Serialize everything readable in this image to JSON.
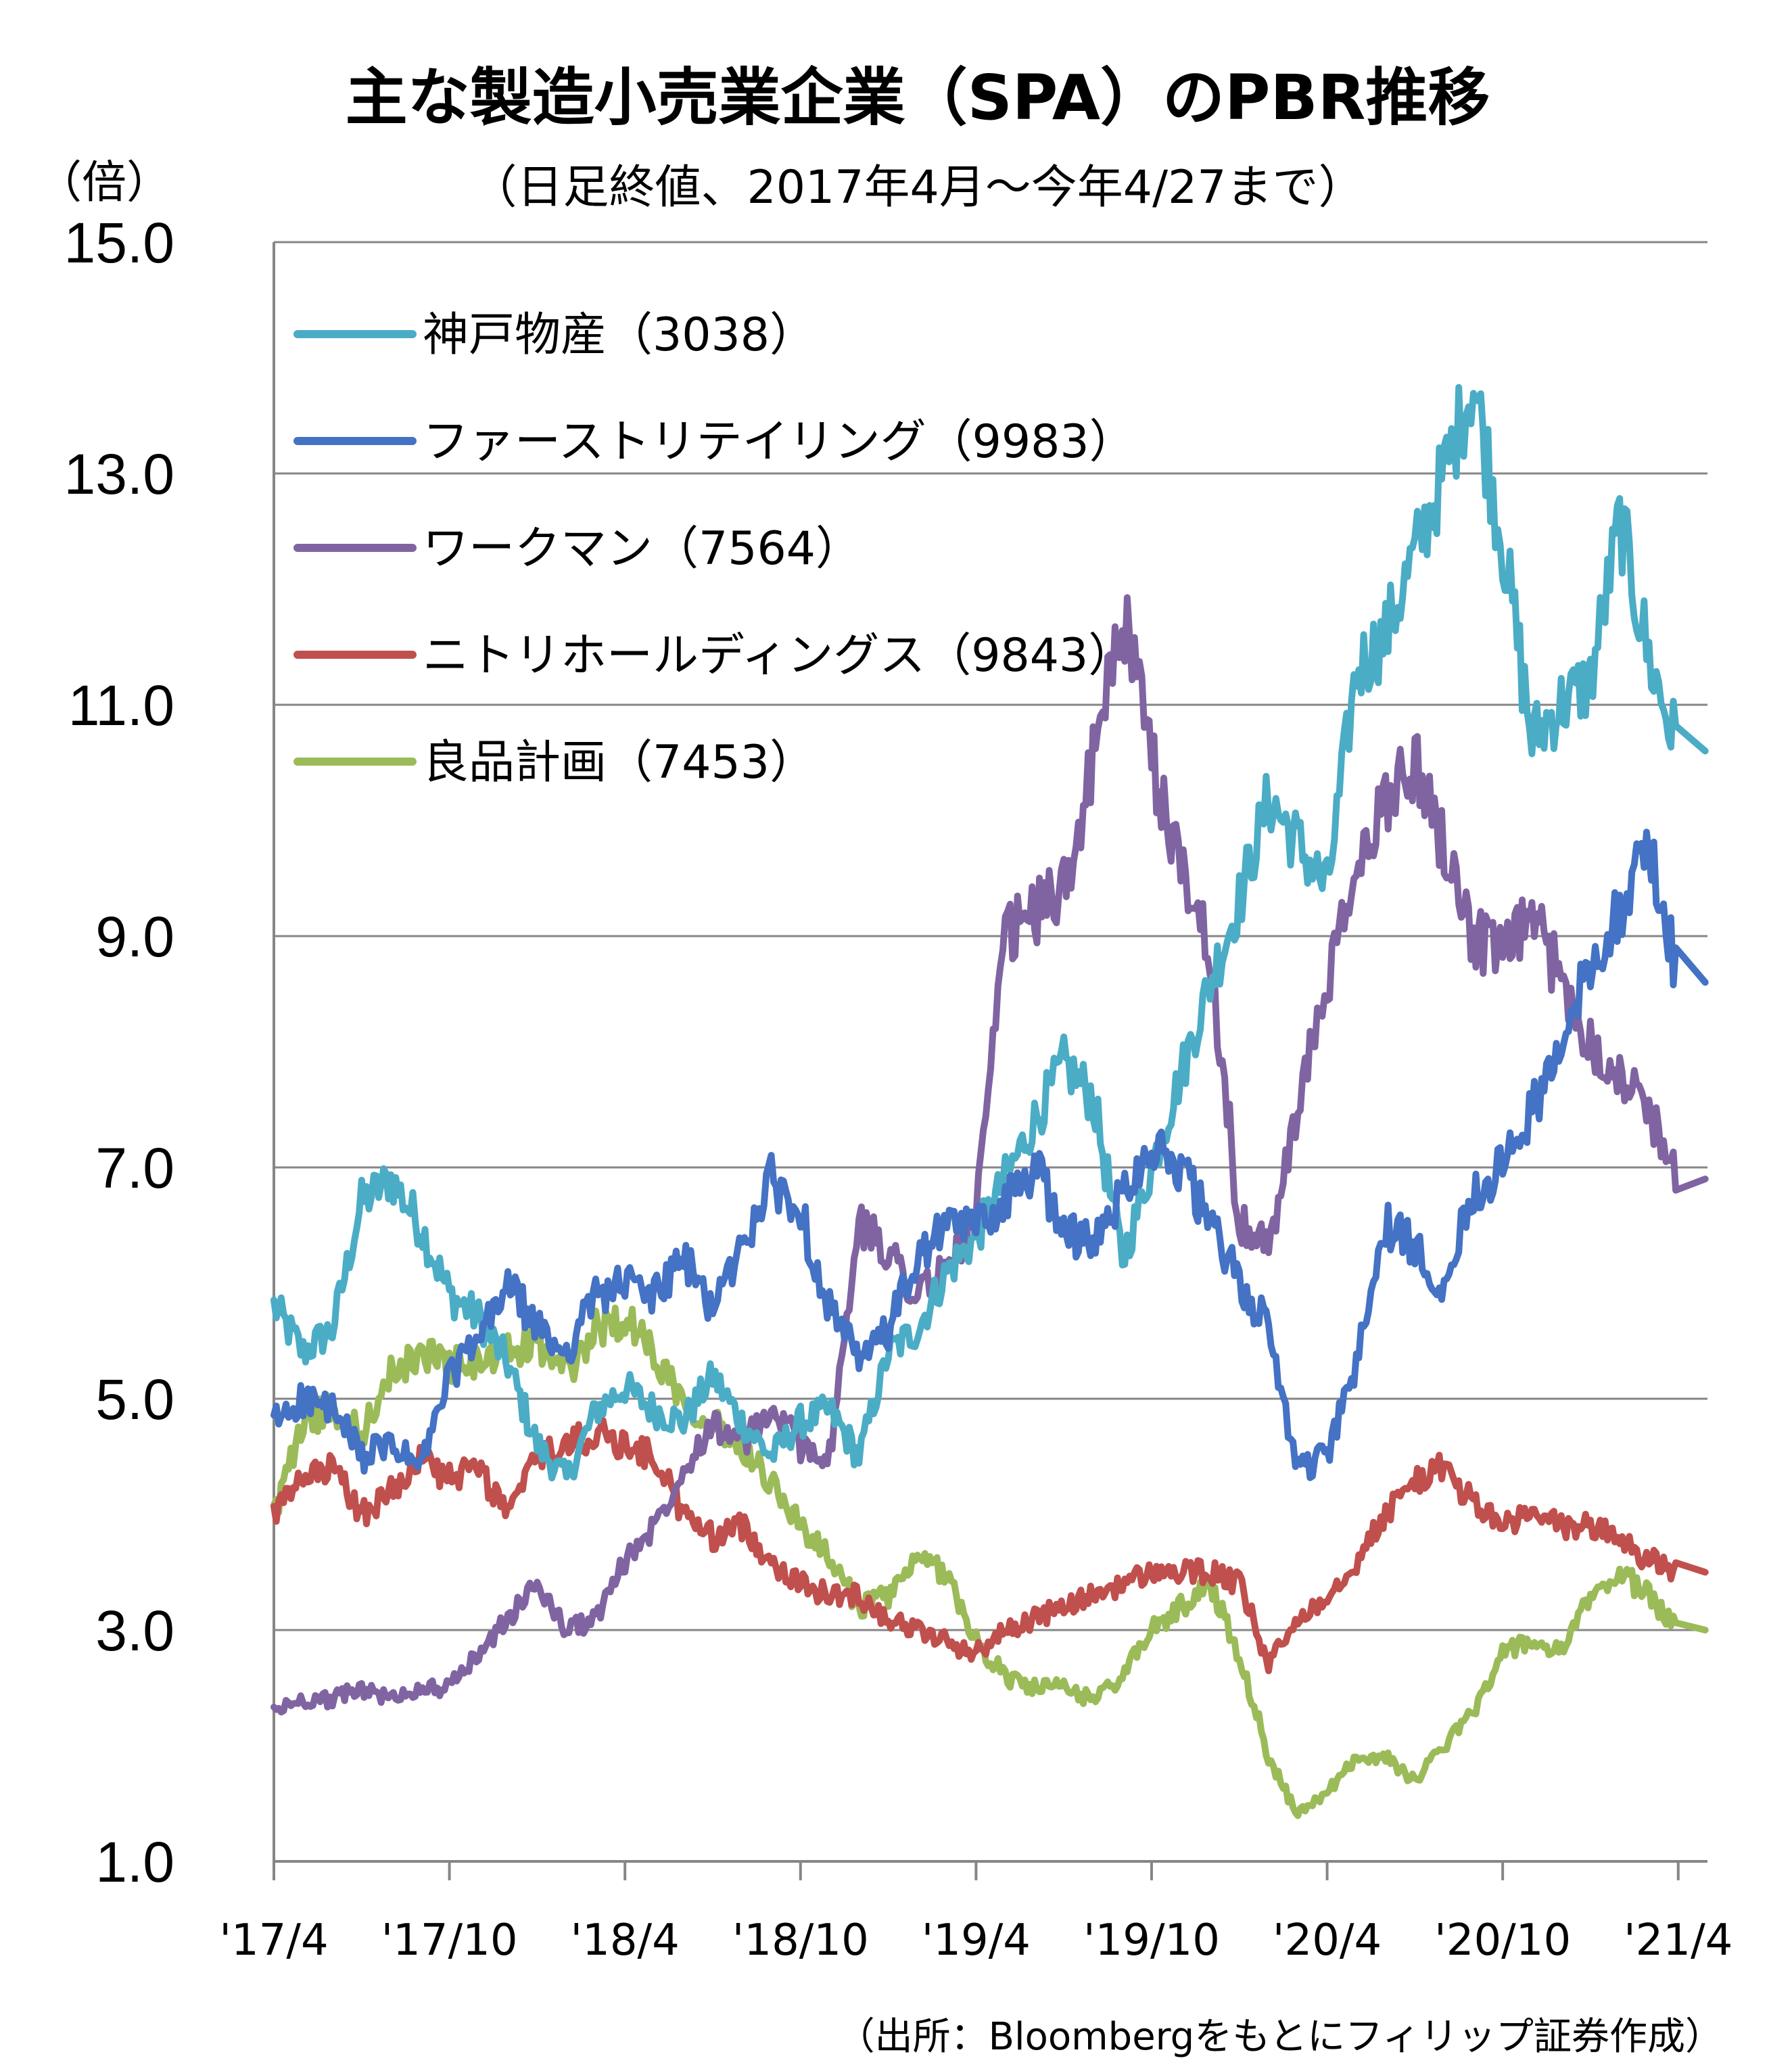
{
  "chart_data": {
    "type": "line",
    "title": "主な製造小売業企業（SPA）のPBR推移",
    "subtitle": "（日足終値、2017年4月～今年4/27まで）",
    "ylabel": "（倍）",
    "xlabel": "",
    "source": "（出所：Bloombergをもとにフィリップ証券作成）",
    "ylim": [
      1.0,
      15.0
    ],
    "yticks": [
      "15.0",
      "13.0",
      "11.0",
      "9.0",
      "7.0",
      "5.0",
      "3.0",
      "1.0"
    ],
    "x_range": [
      "2017-04",
      "2021-05"
    ],
    "xticks": [
      "'17/4",
      "'17/10",
      "'18/4",
      "'18/10",
      "'19/4",
      "'19/10",
      "'20/4",
      "'20/10",
      "'21/4"
    ],
    "grid": "horizontal",
    "legend_position": "top-left",
    "series": [
      {
        "name": "神戸物産（3038）",
        "color": "#4BACC6",
        "x": [
          "2017-04",
          "2017-05",
          "2017-06",
          "2017-07",
          "2017-08",
          "2017-09",
          "2017-10",
          "2017-11",
          "2017-12",
          "2018-01",
          "2018-02",
          "2018-03",
          "2018-04",
          "2018-05",
          "2018-06",
          "2018-07",
          "2018-08",
          "2018-09",
          "2018-10",
          "2018-11",
          "2018-12",
          "2019-01",
          "2019-02",
          "2019-03",
          "2019-04",
          "2019-05",
          "2019-06",
          "2019-07",
          "2019-08",
          "2019-09",
          "2019-10",
          "2019-11",
          "2019-12",
          "2020-01",
          "2020-02",
          "2020-03",
          "2020-04",
          "2020-05",
          "2020-06",
          "2020-07",
          "2020-08",
          "2020-09",
          "2020-10",
          "2020-11",
          "2020-12",
          "2021-01",
          "2021-02",
          "2021-03",
          "2021-04"
        ],
        "values": [
          5.8,
          5.4,
          5.6,
          6.7,
          6.9,
          6.5,
          5.9,
          5.7,
          5.3,
          4.6,
          4.3,
          4.9,
          5.1,
          4.9,
          4.8,
          5.2,
          4.8,
          4.5,
          4.8,
          4.9,
          4.5,
          5.4,
          5.6,
          6.1,
          6.4,
          6.9,
          7.4,
          7.9,
          7.6,
          6.2,
          7.0,
          7.8,
          8.6,
          9.3,
          10.2,
          9.8,
          9.4,
          11.3,
          11.6,
          12.3,
          13.0,
          13.8,
          12.4,
          10.7,
          11.0,
          11.2,
          12.6,
          11.4,
          10.6
        ]
      },
      {
        "name": "ファーストリテイリング（9983）",
        "color": "#4472C4",
        "x": [
          "2017-04",
          "2017-05",
          "2017-06",
          "2017-07",
          "2017-08",
          "2017-09",
          "2017-10",
          "2017-11",
          "2017-12",
          "2018-01",
          "2018-02",
          "2018-03",
          "2018-04",
          "2018-05",
          "2018-06",
          "2018-07",
          "2018-08",
          "2018-09",
          "2018-10",
          "2018-11",
          "2018-12",
          "2019-01",
          "2019-02",
          "2019-03",
          "2019-04",
          "2019-05",
          "2019-06",
          "2019-07",
          "2019-08",
          "2019-09",
          "2019-10",
          "2019-11",
          "2019-12",
          "2020-01",
          "2020-02",
          "2020-03",
          "2020-04",
          "2020-05",
          "2020-06",
          "2020-07",
          "2020-08",
          "2020-09",
          "2020-10",
          "2020-11",
          "2020-12",
          "2021-01",
          "2021-02",
          "2021-03",
          "2021-04"
        ],
        "values": [
          4.8,
          5.0,
          4.9,
          4.5,
          4.6,
          4.4,
          5.2,
          5.5,
          6.0,
          5.6,
          5.4,
          5.9,
          6.0,
          5.9,
          6.2,
          5.8,
          6.3,
          6.9,
          6.6,
          5.8,
          5.3,
          5.6,
          6.2,
          6.5,
          6.5,
          6.7,
          7.0,
          6.5,
          6.3,
          6.8,
          7.2,
          7.0,
          6.5,
          6.0,
          5.6,
          4.4,
          4.5,
          5.3,
          6.5,
          6.3,
          6.0,
          6.8,
          7.0,
          7.5,
          8.0,
          8.8,
          9.2,
          9.8,
          8.6
        ]
      },
      {
        "name": "ワークマン（7564）",
        "color": "#8064A2",
        "x": [
          "2017-04",
          "2017-05",
          "2017-06",
          "2017-07",
          "2017-08",
          "2017-09",
          "2017-10",
          "2017-11",
          "2017-12",
          "2018-01",
          "2018-02",
          "2018-03",
          "2018-04",
          "2018-05",
          "2018-06",
          "2018-07",
          "2018-08",
          "2018-09",
          "2018-10",
          "2018-11",
          "2018-12",
          "2019-01",
          "2019-02",
          "2019-03",
          "2019-04",
          "2019-05",
          "2019-06",
          "2019-07",
          "2019-08",
          "2019-09",
          "2019-10",
          "2019-11",
          "2019-12",
          "2020-01",
          "2020-02",
          "2020-03",
          "2020-04",
          "2020-05",
          "2020-06",
          "2020-07",
          "2020-08",
          "2020-09",
          "2020-10",
          "2020-11",
          "2020-12",
          "2021-01",
          "2021-02",
          "2021-03",
          "2021-04"
        ],
        "values": [
          2.3,
          2.4,
          2.4,
          2.5,
          2.4,
          2.5,
          2.5,
          2.8,
          3.1,
          3.4,
          3.0,
          3.1,
          3.6,
          3.9,
          4.4,
          4.8,
          4.6,
          4.9,
          4.6,
          4.5,
          6.5,
          6.3,
          5.9,
          6.1,
          6.6,
          9.0,
          9.2,
          9.4,
          10.5,
          11.8,
          10.5,
          9.6,
          8.9,
          6.5,
          6.3,
          7.5,
          8.6,
          9.5,
          10.2,
          10.5,
          9.8,
          9.0,
          8.8,
          9.2,
          8.6,
          8.1,
          7.8,
          7.5,
          6.9
        ]
      },
      {
        "name": "ニトリホールディングス（9843）",
        "color": "#C0504D",
        "x": [
          "2017-04",
          "2017-05",
          "2017-06",
          "2017-07",
          "2017-08",
          "2017-09",
          "2017-10",
          "2017-11",
          "2017-12",
          "2018-01",
          "2018-02",
          "2018-03",
          "2018-04",
          "2018-05",
          "2018-06",
          "2018-07",
          "2018-08",
          "2018-09",
          "2018-10",
          "2018-11",
          "2018-12",
          "2019-01",
          "2019-02",
          "2019-03",
          "2019-04",
          "2019-05",
          "2019-06",
          "2019-07",
          "2019-08",
          "2019-09",
          "2019-10",
          "2019-11",
          "2019-12",
          "2020-01",
          "2020-02",
          "2020-03",
          "2020-04",
          "2020-05",
          "2020-06",
          "2020-07",
          "2020-08",
          "2020-09",
          "2020-10",
          "2020-11",
          "2020-12",
          "2021-01",
          "2021-02",
          "2021-03",
          "2021-04"
        ],
        "values": [
          4.0,
          4.3,
          4.4,
          4.0,
          4.2,
          4.5,
          4.3,
          4.4,
          4.0,
          4.5,
          4.6,
          4.7,
          4.6,
          4.5,
          4.0,
          3.8,
          3.9,
          3.6,
          3.4,
          3.3,
          3.3,
          3.1,
          3.0,
          2.9,
          2.8,
          3.0,
          3.1,
          3.2,
          3.3,
          3.4,
          3.5,
          3.5,
          3.5,
          3.4,
          2.7,
          3.1,
          3.3,
          3.6,
          4.0,
          4.3,
          4.4,
          4.1,
          3.9,
          4.0,
          3.9,
          3.9,
          3.8,
          3.6,
          3.5
        ]
      },
      {
        "name": "良品計画（7453）",
        "color": "#9BBB59",
        "x": [
          "2017-04",
          "2017-05",
          "2017-06",
          "2017-07",
          "2017-08",
          "2017-09",
          "2017-10",
          "2017-11",
          "2017-12",
          "2018-01",
          "2018-02",
          "2018-03",
          "2018-04",
          "2018-05",
          "2018-06",
          "2018-07",
          "2018-08",
          "2018-09",
          "2018-10",
          "2018-11",
          "2018-12",
          "2019-01",
          "2019-02",
          "2019-03",
          "2019-04",
          "2019-05",
          "2019-06",
          "2019-07",
          "2019-08",
          "2019-09",
          "2019-10",
          "2019-11",
          "2019-12",
          "2020-01",
          "2020-02",
          "2020-03",
          "2020-04",
          "2020-05",
          "2020-06",
          "2020-07",
          "2020-08",
          "2020-09",
          "2020-10",
          "2020-11",
          "2020-12",
          "2021-01",
          "2021-02",
          "2021-03",
          "2021-04"
        ],
        "values": [
          4.0,
          4.8,
          4.9,
          4.7,
          5.2,
          5.4,
          5.3,
          5.3,
          5.4,
          5.5,
          5.2,
          5.6,
          5.7,
          5.4,
          5.0,
          4.8,
          4.6,
          4.3,
          3.9,
          3.6,
          3.2,
          3.3,
          3.6,
          3.5,
          2.9,
          2.6,
          2.5,
          2.5,
          2.4,
          2.6,
          3.0,
          3.2,
          3.4,
          2.8,
          1.9,
          1.4,
          1.6,
          1.9,
          1.9,
          1.7,
          2.0,
          2.3,
          2.8,
          2.9,
          2.8,
          3.3,
          3.5,
          3.3,
          3.0
        ]
      }
    ]
  }
}
